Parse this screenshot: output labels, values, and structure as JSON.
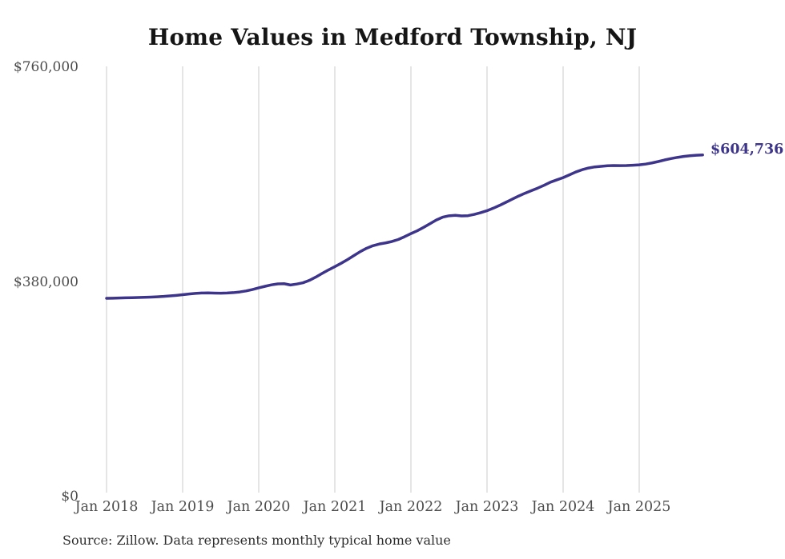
{
  "title": "Home Values in Medford Township, NJ",
  "end_label": "$604,736",
  "source_note": "Source: Zillow. Data represents monthly typical home value",
  "y_axis": {
    "ticks": [
      "$0",
      "$380,000",
      "$760,000"
    ],
    "min": 0,
    "max": 760000
  },
  "x_axis": {
    "ticks": [
      "Jan 2018",
      "Jan 2019",
      "Jan 2020",
      "Jan 2021",
      "Jan 2022",
      "Jan 2023",
      "Jan 2024",
      "Jan 2025"
    ]
  },
  "colors": {
    "line": "#3d358b",
    "end_label": "#3d358b",
    "grid": "#cbcbcb",
    "axis_text": "#4d4d4d",
    "title_text": "#151515",
    "source_text": "#2e2e2e",
    "background": "#ffffff"
  },
  "chart_data": {
    "type": "line",
    "title": "Home Values in Medford Township, NJ",
    "xlabel": "",
    "ylabel": "",
    "ylim": [
      0,
      760000
    ],
    "grid": "vertical-only",
    "legend": "none",
    "annotation": "$604,736",
    "x_tick_labels": [
      "Jan 2018",
      "Jan 2019",
      "Jan 2020",
      "Jan 2021",
      "Jan 2022",
      "Jan 2023",
      "Jan 2024",
      "Jan 2025"
    ],
    "y_tick_labels": [
      "$0",
      "$380,000",
      "$760,000"
    ],
    "x": [
      "2018-01",
      "2018-02",
      "2018-03",
      "2018-04",
      "2018-05",
      "2018-06",
      "2018-07",
      "2018-08",
      "2018-09",
      "2018-10",
      "2018-11",
      "2018-12",
      "2019-01",
      "2019-02",
      "2019-03",
      "2019-04",
      "2019-05",
      "2019-06",
      "2019-07",
      "2019-08",
      "2019-09",
      "2019-10",
      "2019-11",
      "2019-12",
      "2020-01",
      "2020-02",
      "2020-03",
      "2020-04",
      "2020-05",
      "2020-06",
      "2020-07",
      "2020-08",
      "2020-09",
      "2020-10",
      "2020-11",
      "2020-12",
      "2021-01",
      "2021-02",
      "2021-03",
      "2021-04",
      "2021-05",
      "2021-06",
      "2021-07",
      "2021-08",
      "2021-09",
      "2021-10",
      "2021-11",
      "2021-12",
      "2022-01",
      "2022-02",
      "2022-03",
      "2022-04",
      "2022-05",
      "2022-06",
      "2022-07",
      "2022-08",
      "2022-09",
      "2022-10",
      "2022-11",
      "2022-12",
      "2023-01",
      "2023-02",
      "2023-03",
      "2023-04",
      "2023-05",
      "2023-06",
      "2023-07",
      "2023-08",
      "2023-09",
      "2023-10",
      "2023-11",
      "2023-12",
      "2024-01",
      "2024-02",
      "2024-03",
      "2024-04",
      "2024-05",
      "2024-06",
      "2024-07",
      "2024-08",
      "2024-09",
      "2024-10",
      "2024-11",
      "2024-12",
      "2025-01",
      "2025-02",
      "2025-03",
      "2025-04",
      "2025-05",
      "2025-06",
      "2025-07",
      "2025-08",
      "2025-09",
      "2025-10",
      "2025-11"
    ],
    "values": [
      351000,
      351200,
      351500,
      351800,
      352100,
      352400,
      352800,
      353200,
      353700,
      354300,
      355200,
      356200,
      357400,
      358600,
      359600,
      360300,
      360500,
      360200,
      360000,
      360300,
      361000,
      362200,
      364000,
      366500,
      369400,
      372200,
      374800,
      376500,
      376800,
      374500,
      376200,
      378500,
      382800,
      388500,
      395000,
      401200,
      407000,
      413000,
      419500,
      426500,
      433500,
      439500,
      444000,
      447000,
      449000,
      451500,
      455000,
      460000,
      465500,
      470500,
      476500,
      483000,
      489500,
      494500,
      497000,
      497800,
      496800,
      497200,
      499500,
      502500,
      506000,
      510500,
      515500,
      521000,
      526500,
      532000,
      537000,
      541500,
      546000,
      551000,
      556500,
      560500,
      564500,
      569500,
      574500,
      578500,
      581500,
      583500,
      584500,
      585500,
      586000,
      585800,
      586000,
      586500,
      587200,
      588500,
      590500,
      593000,
      595800,
      598200,
      600300,
      602000,
      603300,
      604200,
      604736
    ]
  }
}
